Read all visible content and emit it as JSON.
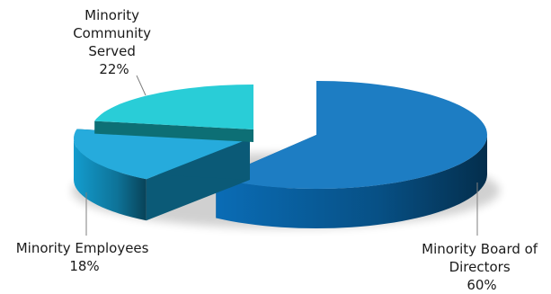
{
  "chart_data": {
    "type": "pie",
    "style": "3d-exploded",
    "title": "",
    "legend": "none",
    "slices": [
      {
        "name": "Minority Board of Directors",
        "label_lines": [
          "Minority Board of",
          "Directors"
        ],
        "value": 60,
        "value_label": "60%",
        "color": "#0a72be"
      },
      {
        "name": "Minority Employees",
        "label_lines": [
          "Minority Employees"
        ],
        "value": 18,
        "value_label": "18%",
        "color": "#14a4d9"
      },
      {
        "name": "Minority Community Served",
        "label_lines": [
          "Minority",
          "Community",
          "Served"
        ],
        "value": 22,
        "value_label": "22%",
        "color": "#17c9d4"
      }
    ]
  }
}
